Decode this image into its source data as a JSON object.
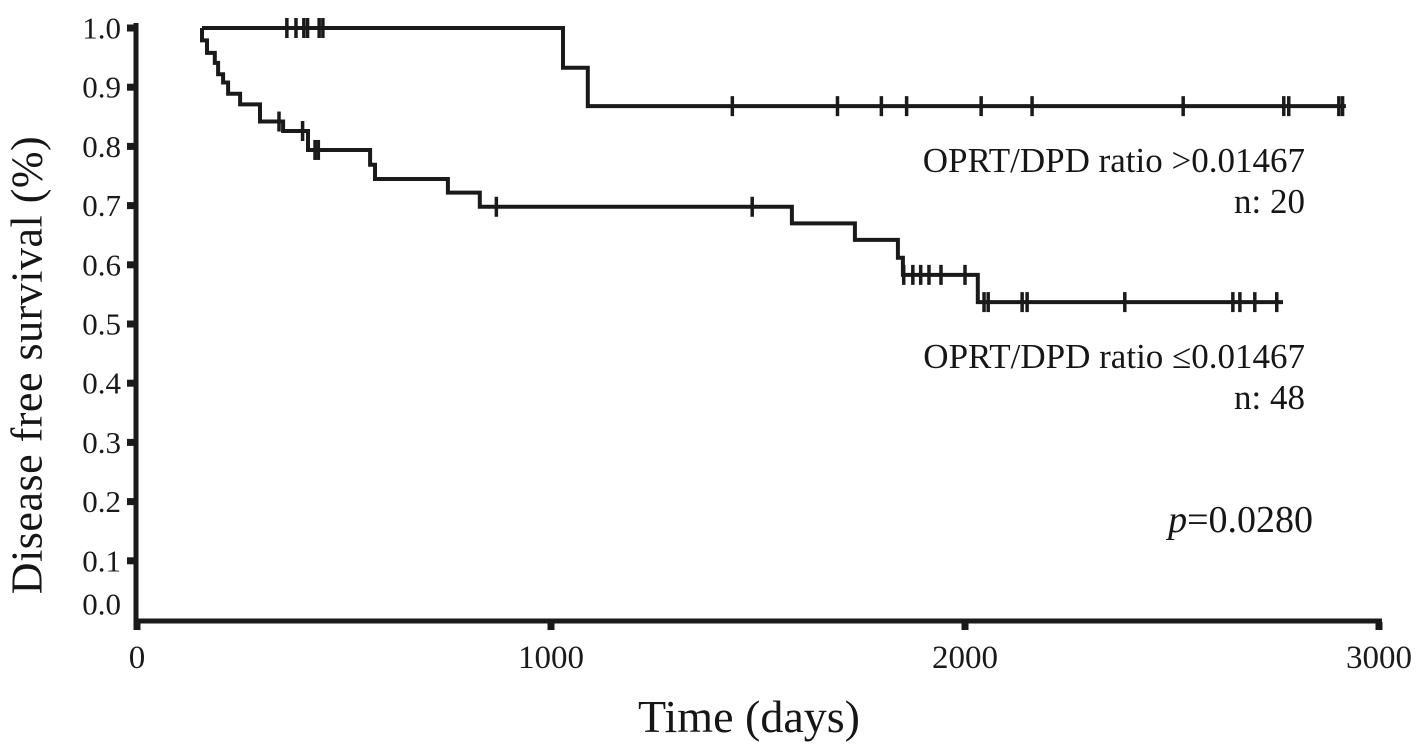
{
  "figure": {
    "background": "#ffffff",
    "line_color": "#1a1a1a"
  },
  "annotations": {
    "group_high_label": "OPRT/DPD ratio >0.01467",
    "group_high_n": "n: 20",
    "group_low_label": "OPRT/DPD ratio ≤0.01467",
    "group_low_n": "n: 48",
    "p_symbol": "p",
    "p_value": "=0.0280"
  },
  "chart_data": {
    "type": "line",
    "subtype": "kaplan-meier-step",
    "title": "",
    "xlabel": "Time (days)",
    "ylabel": "Disease free survival (%)",
    "xlim": [
      0,
      3000
    ],
    "ylim": [
      0.0,
      1.0
    ],
    "x_ticks": [
      "0",
      "1000",
      "2000",
      "3000"
    ],
    "y_ticks": [
      "1.0",
      "0.9",
      "0.8",
      "0.7",
      "0.6",
      "0.5",
      "0.4",
      "0.3",
      "0.2",
      "0.1",
      "0.0"
    ],
    "grid": false,
    "legend_position": "annotated-inline",
    "series": [
      {
        "name": "OPRT/DPD ratio >0.01467",
        "n": 20,
        "start_day": 157,
        "start_value": 1.0,
        "events": [
          [
            1029,
            0.933
          ],
          [
            1089,
            0.868
          ]
        ],
        "end_day": 2920,
        "censors": [
          [
            362,
            1.0
          ],
          [
            384,
            1.0
          ],
          [
            403,
            1.0
          ],
          [
            412,
            1.0
          ],
          [
            440,
            1.0
          ],
          [
            449,
            1.0
          ],
          [
            1438,
            0.868
          ],
          [
            1692,
            0.868
          ],
          [
            1798,
            0.868
          ],
          [
            1859,
            0.868
          ],
          [
            2039,
            0.868
          ],
          [
            2162,
            0.868
          ],
          [
            2527,
            0.868
          ],
          [
            2770,
            0.868
          ],
          [
            2782,
            0.868
          ],
          [
            2903,
            0.868
          ],
          [
            2912,
            0.868
          ]
        ]
      },
      {
        "name": "OPRT/DPD ratio ≤0.01467",
        "n": 48,
        "start_day": 157,
        "start_value": 1.0,
        "events": [
          [
            157,
            0.979
          ],
          [
            169,
            0.958
          ],
          [
            188,
            0.941
          ],
          [
            196,
            0.922
          ],
          [
            208,
            0.908
          ],
          [
            220,
            0.889
          ],
          [
            249,
            0.871
          ],
          [
            297,
            0.842
          ],
          [
            353,
            0.826
          ],
          [
            413,
            0.794
          ],
          [
            563,
            0.769
          ],
          [
            575,
            0.745
          ],
          [
            751,
            0.722
          ],
          [
            828,
            0.698
          ],
          [
            1582,
            0.67
          ],
          [
            1734,
            0.642
          ],
          [
            1838,
            0.612
          ],
          [
            1850,
            0.583
          ],
          [
            2031,
            0.537
          ]
        ],
        "end_day": 2768,
        "censors": [
          [
            343,
            0.842
          ],
          [
            400,
            0.826
          ],
          [
            430,
            0.794
          ],
          [
            438,
            0.794
          ],
          [
            868,
            0.698
          ],
          [
            1486,
            0.698
          ],
          [
            1852,
            0.583
          ],
          [
            1874,
            0.583
          ],
          [
            1893,
            0.583
          ],
          [
            1913,
            0.583
          ],
          [
            1942,
            0.583
          ],
          [
            2000,
            0.583
          ],
          [
            2046,
            0.537
          ],
          [
            2056,
            0.537
          ],
          [
            2138,
            0.537
          ],
          [
            2150,
            0.537
          ],
          [
            2386,
            0.537
          ],
          [
            2647,
            0.537
          ],
          [
            2664,
            0.537
          ],
          [
            2700,
            0.537
          ],
          [
            2753,
            0.537
          ]
        ]
      }
    ]
  }
}
